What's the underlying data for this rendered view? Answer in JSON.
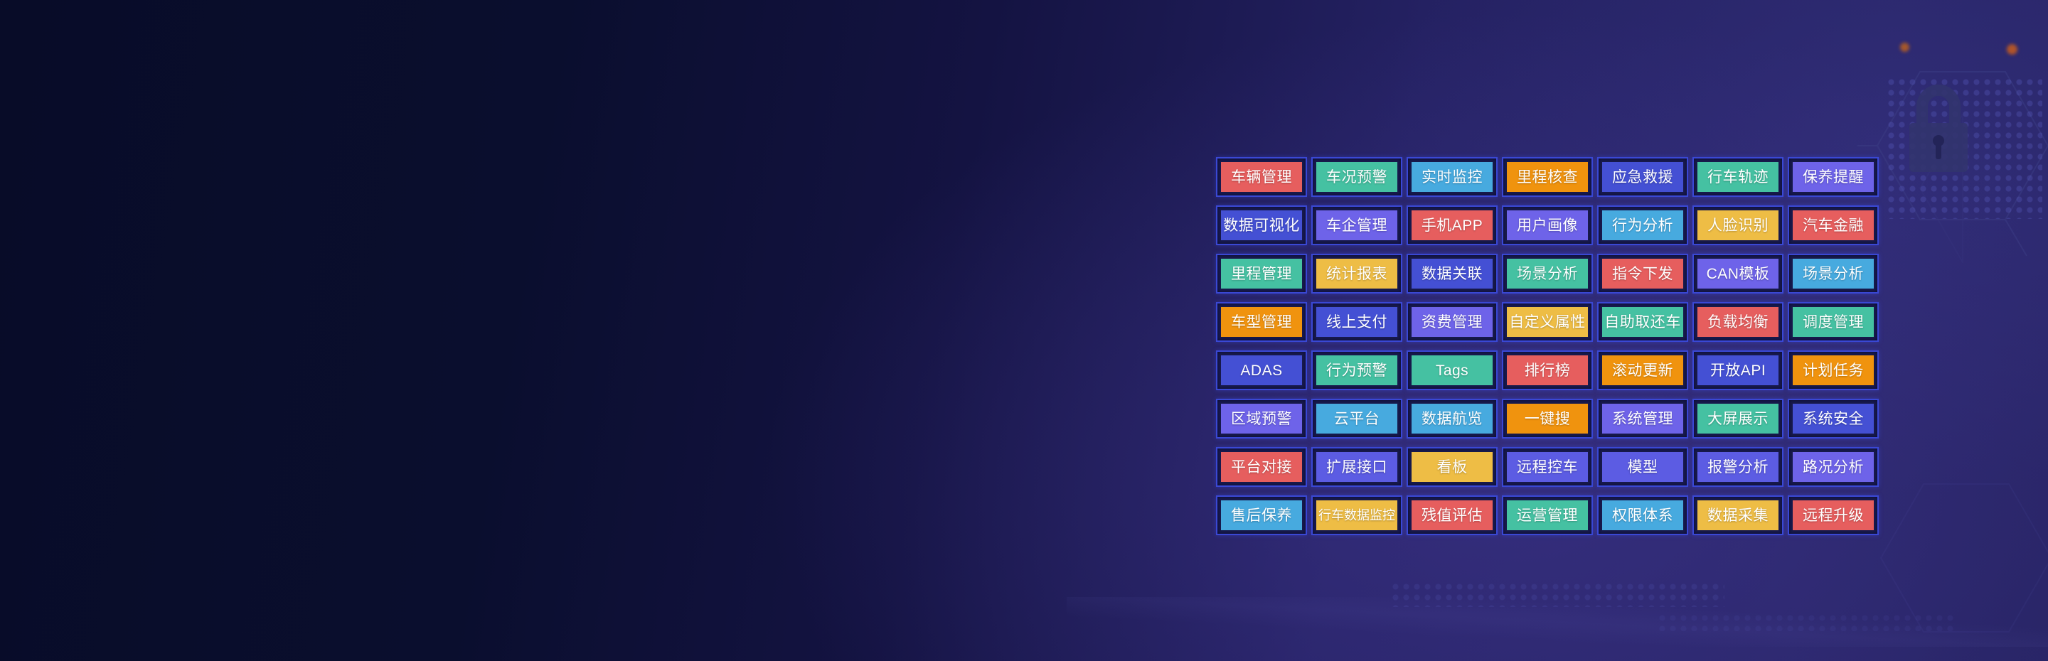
{
  "background": {
    "dark_corner": "#0a0e2e",
    "light_area": "#2a2668"
  },
  "cell_frame": {
    "border_color": "#3a48d4",
    "inner_bg": "#181a4d"
  },
  "palette": {
    "red": "#e65e5e",
    "teal": "#45c1a2",
    "lightblue": "#47aadf",
    "orange": "#f0930e",
    "yellow": "#eebd45",
    "blue": "#4450d4",
    "indigo": "#5c5ce3",
    "purple": "#6e63e9"
  },
  "decor": {
    "lock_icon_color": "#32346e",
    "hexagon_line_color": "#3c3d85",
    "glow_dot_color": "#a4572c"
  },
  "feature_grid": {
    "rows": [
      [
        {
          "label": "车辆管理",
          "color": "red"
        },
        {
          "label": "车况预警",
          "color": "teal"
        },
        {
          "label": "实时监控",
          "color": "lightblue"
        },
        {
          "label": "里程核查",
          "color": "orange"
        },
        {
          "label": "应急救援",
          "color": "blue"
        },
        {
          "label": "行车轨迹",
          "color": "teal"
        },
        {
          "label": "保养提醒",
          "color": "purple"
        }
      ],
      [
        {
          "label": "数据可视化",
          "color": "blue"
        },
        {
          "label": "车企管理",
          "color": "purple"
        },
        {
          "label": "手机APP",
          "color": "red"
        },
        {
          "label": "用户画像",
          "color": "purple"
        },
        {
          "label": "行为分析",
          "color": "lightblue"
        },
        {
          "label": "人脸识别",
          "color": "yellow"
        },
        {
          "label": "汽车金融",
          "color": "red"
        }
      ],
      [
        {
          "label": "里程管理",
          "color": "teal"
        },
        {
          "label": "统计报表",
          "color": "yellow"
        },
        {
          "label": "数据关联",
          "color": "blue"
        },
        {
          "label": "场景分析",
          "color": "teal"
        },
        {
          "label": "指令下发",
          "color": "red"
        },
        {
          "label": "CAN模板",
          "color": "purple"
        },
        {
          "label": "场景分析",
          "color": "lightblue"
        }
      ],
      [
        {
          "label": "车型管理",
          "color": "orange"
        },
        {
          "label": "线上支付",
          "color": "blue"
        },
        {
          "label": "资费管理",
          "color": "purple"
        },
        {
          "label": "自定义属性",
          "color": "yellow"
        },
        {
          "label": "自助取还车",
          "color": "teal"
        },
        {
          "label": "负载均衡",
          "color": "red"
        },
        {
          "label": "调度管理",
          "color": "teal"
        }
      ],
      [
        {
          "label": "ADAS",
          "color": "blue"
        },
        {
          "label": "行为预警",
          "color": "teal"
        },
        {
          "label": "Tags",
          "color": "teal"
        },
        {
          "label": "排行榜",
          "color": "red"
        },
        {
          "label": "滚动更新",
          "color": "orange"
        },
        {
          "label": "开放API",
          "color": "blue"
        },
        {
          "label": "计划任务",
          "color": "orange"
        }
      ],
      [
        {
          "label": "区域预警",
          "color": "purple"
        },
        {
          "label": "云平台",
          "color": "lightblue"
        },
        {
          "label": "数据航览",
          "color": "lightblue"
        },
        {
          "label": "一键搜",
          "color": "orange"
        },
        {
          "label": "系统管理",
          "color": "purple"
        },
        {
          "label": "大屏展示",
          "color": "teal"
        },
        {
          "label": "系统安全",
          "color": "blue"
        }
      ],
      [
        {
          "label": "平台对接",
          "color": "red"
        },
        {
          "label": "扩展接口",
          "color": "indigo"
        },
        {
          "label": "看板",
          "color": "yellow"
        },
        {
          "label": "远程控车",
          "color": "indigo"
        },
        {
          "label": "模型",
          "color": "indigo"
        },
        {
          "label": "报警分析",
          "color": "indigo"
        },
        {
          "label": "路况分析",
          "color": "purple"
        }
      ],
      [
        {
          "label": "售后保养",
          "color": "lightblue"
        },
        {
          "label": "行车数据监控",
          "color": "yellow"
        },
        {
          "label": "残值评估",
          "color": "red"
        },
        {
          "label": "运营管理",
          "color": "teal"
        },
        {
          "label": "权限体系",
          "color": "lightblue"
        },
        {
          "label": "数据采集",
          "color": "yellow"
        },
        {
          "label": "远程升级",
          "color": "red"
        }
      ]
    ]
  }
}
